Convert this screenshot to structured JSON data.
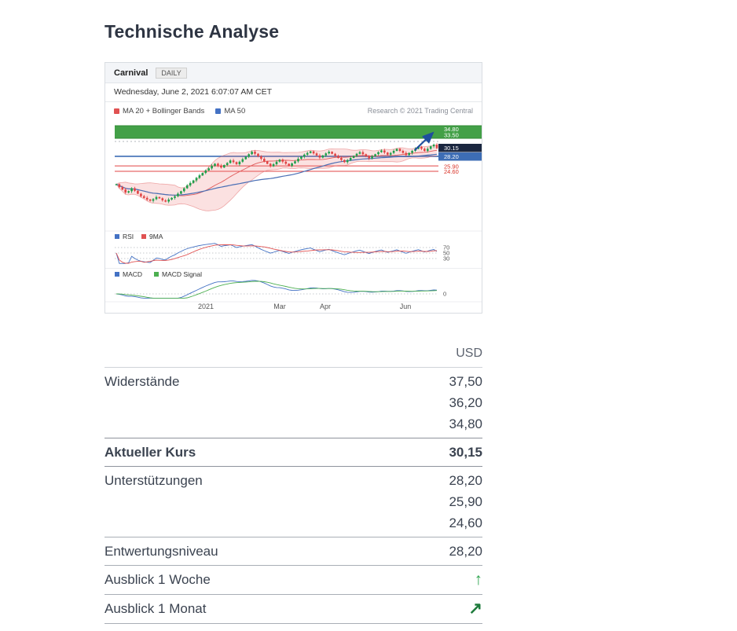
{
  "page": {
    "title": "Technische Analyse"
  },
  "chart": {
    "instrument": "Carnival",
    "tab": "DAILY",
    "timestamp": "Wednesday, June 2, 2021 6:07:07 AM CET",
    "legend": {
      "ma20": "MA 20 + Bollinger Bands",
      "ma50": "MA 50"
    },
    "credit": "Research © 2021 Trading Central",
    "price_labels": {
      "r2": "34.80",
      "r1": "33.50",
      "current": "30.15",
      "s1": "28.20",
      "s2": "25.90",
      "s3": "24.60"
    },
    "rsi": {
      "label": "RSI",
      "ma_label": "9MA",
      "levels": [
        "70",
        "50",
        "30"
      ]
    },
    "macd": {
      "label": "MACD",
      "signal_label": "MACD Signal",
      "zero": "0"
    }
  },
  "chart_data": {
    "type": "candlestick",
    "title": "Carnival DAILY with MA20 + Bollinger Bands, MA50, RSI(14) + 9MA, MACD + Signal",
    "interval": "DAILY",
    "x_axis_labels": [
      "2021",
      "Mar",
      "Apr",
      "Jun"
    ],
    "levels": {
      "resistances": [
        37.5,
        36.2,
        34.8
      ],
      "resistance_zone": [
        33.5,
        34.8
      ],
      "current": 30.15,
      "pivot": 28.2,
      "supports": [
        25.9,
        24.6
      ]
    },
    "rsi_levels": [
      70,
      50,
      30
    ],
    "macd_zero": 0,
    "closes": [
      21.5,
      20.8,
      20.2,
      19.5,
      19.8,
      20.5,
      19.9,
      19.2,
      18.6,
      18.2,
      17.8,
      17.5,
      17.9,
      18.4,
      18.1,
      17.6,
      17.3,
      17.8,
      18.2,
      18.6,
      19.2,
      19.8,
      20.5,
      21.2,
      21.8,
      22.4,
      23.0,
      23.6,
      24.2,
      24.8,
      25.3,
      25.9,
      26.4,
      26.0,
      25.5,
      26.1,
      26.6,
      27.2,
      26.8,
      26.3,
      26.9,
      27.5,
      28.1,
      28.7,
      29.3,
      28.8,
      28.2,
      27.6,
      27.0,
      26.4,
      25.8,
      26.3,
      26.9,
      27.4,
      26.9,
      26.4,
      25.9,
      26.5,
      27.0,
      27.6,
      28.1,
      28.6,
      29.0,
      29.4,
      28.9,
      28.4,
      27.9,
      28.4,
      28.9,
      29.3,
      28.8,
      28.3,
      27.8,
      27.3,
      26.8,
      27.3,
      27.8,
      28.3,
      28.8,
      29.2,
      28.7,
      28.2,
      27.7,
      28.2,
      28.7,
      29.2,
      29.6,
      29.1,
      28.6,
      29.0,
      29.5,
      30.0,
      29.5,
      29.0,
      28.5,
      29.0,
      29.5,
      30.0,
      30.5,
      30.0,
      29.5,
      30.0,
      30.6,
      31.0,
      30.15
    ]
  },
  "table": {
    "currency_header": "USD",
    "rows": [
      {
        "label": "Widerstände",
        "values": [
          "37,50",
          "36,20",
          "34,80"
        ]
      },
      {
        "label": "Aktueller Kurs",
        "values": [
          "30,15"
        ]
      },
      {
        "label": "Unterstützungen",
        "values": [
          "28,20",
          "25,90",
          "24,60"
        ]
      },
      {
        "label": "Entwertungsniveau",
        "values": [
          "28,20"
        ]
      },
      {
        "label": "Ausblick 1 Woche"
      },
      {
        "label": "Ausblick 1 Monat"
      }
    ]
  },
  "icons": {
    "up_arrow": "↑",
    "up_right_arrow": "↗"
  },
  "colors": {
    "resistance_green": "#43a047",
    "pivot_blue": "#3d6db5",
    "current_navy": "#1b2740",
    "support_red": "#d93025",
    "candle_up": "#1e9e4a",
    "candle_down": "#e04343",
    "arrow_week_green": "#2ea44f",
    "arrow_month_green": "#1e7b3c"
  }
}
